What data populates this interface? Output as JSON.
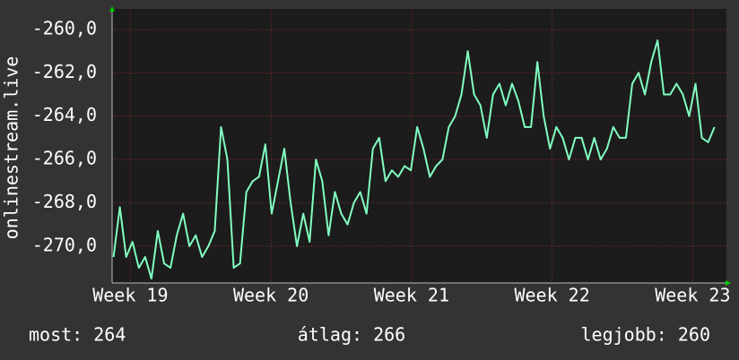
{
  "chart_data": {
    "type": "line",
    "y_label": "onlinestream.live",
    "color": "#80ffc0",
    "grid": true,
    "ylim": [
      -271.7,
      -259.05
    ],
    "yticks": [
      {
        "value": -270,
        "label": "-270,0"
      },
      {
        "value": -268,
        "label": "-268,0"
      },
      {
        "value": -266,
        "label": "-266,0"
      },
      {
        "value": -264,
        "label": "-264,0"
      },
      {
        "value": -262,
        "label": "-262,0"
      },
      {
        "value": -260,
        "label": "-260,0"
      }
    ],
    "xlim": [
      18.87,
      23.24
    ],
    "xticks": [
      {
        "value": 19,
        "label": "Week 19"
      },
      {
        "value": 20,
        "label": "Week 20"
      },
      {
        "value": 21,
        "label": "Week 21"
      },
      {
        "value": 22,
        "label": "Week 22"
      },
      {
        "value": 23,
        "label": "Week 23"
      }
    ],
    "x": [
      18.88,
      18.925,
      18.97,
      19.015,
      19.06,
      19.105,
      19.15,
      19.195,
      19.24,
      19.285,
      19.33,
      19.375,
      19.42,
      19.465,
      19.51,
      19.555,
      19.6,
      19.645,
      19.69,
      19.735,
      19.78,
      19.825,
      19.87,
      19.915,
      19.96,
      20.005,
      20.05,
      20.095,
      20.14,
      20.185,
      20.23,
      20.275,
      20.32,
      20.365,
      20.41,
      20.455,
      20.5,
      20.545,
      20.59,
      20.635,
      20.68,
      20.725,
      20.77,
      20.815,
      20.86,
      20.905,
      20.95,
      20.995,
      21.04,
      21.085,
      21.13,
      21.175,
      21.22,
      21.265,
      21.31,
      21.355,
      21.4,
      21.445,
      21.49,
      21.535,
      21.58,
      21.625,
      21.67,
      21.715,
      21.76,
      21.805,
      21.85,
      21.895,
      21.94,
      21.985,
      22.03,
      22.075,
      22.12,
      22.165,
      22.21,
      22.255,
      22.3,
      22.345,
      22.39,
      22.435,
      22.48,
      22.525,
      22.57,
      22.615,
      22.66,
      22.705,
      22.75,
      22.795,
      22.84,
      22.885,
      22.93,
      22.975,
      23.02,
      23.065,
      23.11,
      23.155
    ],
    "values": [
      -270.5,
      -268.2,
      -270.5,
      -269.8,
      -271,
      -270.5,
      -271.5,
      -269.3,
      -270.8,
      -271,
      -269.5,
      -268.5,
      -270,
      -269.5,
      -270.5,
      -270,
      -269.3,
      -264.5,
      -266,
      -271,
      -270.8,
      -267.5,
      -267,
      -266.8,
      -265.3,
      -268.5,
      -267,
      -265.5,
      -268,
      -270,
      -268.5,
      -269.8,
      -266,
      -267,
      -269.5,
      -267.5,
      -268.5,
      -269,
      -268,
      -267.5,
      -268.5,
      -265.5,
      -265,
      -267,
      -266.5,
      -266.8,
      -266.3,
      -266.5,
      -264.5,
      -265.5,
      -266.8,
      -266.3,
      -266,
      -264.5,
      -264,
      -263,
      -261,
      -263,
      -263.5,
      -265,
      -263,
      -262.5,
      -263.5,
      -262.5,
      -263.3,
      -264.5,
      -264.5,
      -261.5,
      -264,
      -265.5,
      -264.5,
      -265,
      -266,
      -265,
      -265,
      -266,
      -265,
      -266,
      -265.5,
      -264.5,
      -265,
      -265,
      -262.5,
      -262,
      -263,
      -261.5,
      -260.5,
      -263,
      -263,
      -262.5,
      -263,
      -264,
      -262.5,
      -265,
      -265.2,
      -264.5
    ],
    "stats": [
      "most: 264",
      "átlag: 266",
      "legjobb: 260"
    ]
  }
}
